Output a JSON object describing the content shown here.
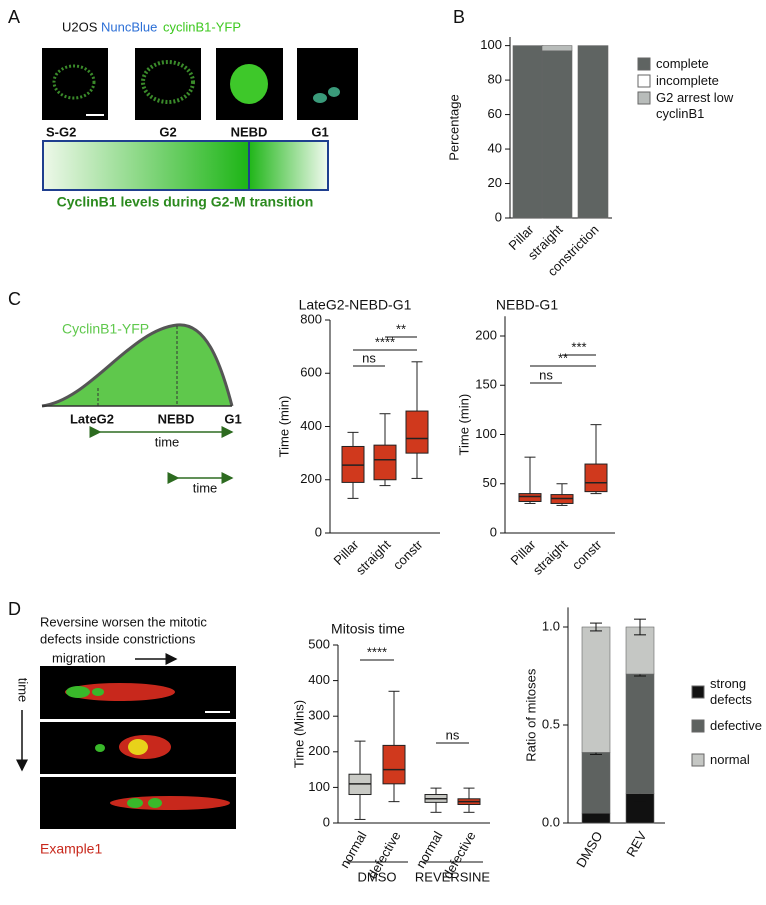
{
  "panel_labels": [
    "A",
    "B",
    "C",
    "D"
  ],
  "panel_a": {
    "stain_labels": [
      "U2OS",
      "NuncBlue",
      "cyclinB1-YFP"
    ],
    "image_labels": [
      "S-G2",
      "G2",
      "NEBD",
      "G1"
    ],
    "caption": "CyclinB1 levels during G2-M transition"
  },
  "panel_c": {
    "curve_label": "CyclinB1-YFP",
    "stage_labels": [
      "LateG2",
      "NEBD",
      "G1"
    ],
    "interval_labels": [
      "time",
      "time"
    ]
  },
  "panel_d": {
    "description": [
      "Reversine worsen the mitotic",
      "defects inside constrictions"
    ],
    "axis_labels": [
      "migration",
      "time"
    ],
    "example_label": "Example1"
  },
  "chart_data": [
    {
      "type": "stacked_bar",
      "ylabel": "Percentage",
      "categories": [
        "Pillar",
        "straight",
        "constriction"
      ],
      "series": [
        {
          "name": "complete",
          "color": "#5f6462",
          "values": [
            100,
            97,
            100
          ]
        },
        {
          "name": "incomplete",
          "color": "#ffffff",
          "values": [
            0,
            0,
            0
          ]
        },
        {
          "name": "G2 arrest low cyclinB1",
          "color": "#b8bcba",
          "values": [
            0,
            3,
            0
          ]
        }
      ],
      "ylim": [
        0,
        105
      ],
      "yticks": [
        0,
        20,
        40,
        60,
        80,
        100
      ]
    },
    {
      "type": "box",
      "title": "LateG2-NEBD-G1",
      "ylabel": "Time (min)",
      "categories": [
        "Pillar",
        "straight",
        "constr"
      ],
      "color": "#d0391d",
      "boxes": [
        {
          "min": 130,
          "q1": 190,
          "median": 255,
          "q3": 325,
          "max": 378
        },
        {
          "min": 178,
          "q1": 200,
          "median": 275,
          "q3": 330,
          "max": 448
        },
        {
          "min": 205,
          "q1": 300,
          "median": 355,
          "q3": 458,
          "max": 643
        }
      ],
      "annotations": [
        "ns",
        "****",
        "**"
      ],
      "ylim": [
        0,
        800
      ],
      "yticks": [
        0,
        200,
        400,
        600,
        800
      ]
    },
    {
      "type": "box",
      "title": "NEBD-G1",
      "ylabel": "Time (min)",
      "categories": [
        "Pillar",
        "straight",
        "constr"
      ],
      "color": "#d0391d",
      "boxes": [
        {
          "min": 30,
          "q1": 32,
          "median": 37,
          "q3": 40,
          "max": 77
        },
        {
          "min": 28,
          "q1": 30,
          "median": 35,
          "q3": 39,
          "max": 50
        },
        {
          "min": 40,
          "q1": 42,
          "median": 51,
          "q3": 70,
          "max": 110
        }
      ],
      "annotations": [
        "ns",
        "**",
        "***"
      ],
      "ylim": [
        0,
        220
      ],
      "yticks": [
        0,
        50,
        100,
        150,
        200
      ]
    },
    {
      "type": "box",
      "title": "Mitosis time",
      "ylabel": "Time (Mins)",
      "categories": [
        "normal",
        "defective",
        "normal",
        "defective"
      ],
      "groups": [
        "DMSO",
        "REVERSINE"
      ],
      "colors": [
        "#c9cac5",
        "#d0391d",
        "#c9cac5",
        "#d0391d"
      ],
      "boxes": [
        {
          "min": 10,
          "q1": 80,
          "median": 110,
          "q3": 137,
          "max": 230
        },
        {
          "min": 60,
          "q1": 110,
          "median": 150,
          "q3": 218,
          "max": 370
        },
        {
          "min": 30,
          "q1": 58,
          "median": 68,
          "q3": 80,
          "max": 98
        },
        {
          "min": 30,
          "q1": 52,
          "median": 60,
          "q3": 68,
          "max": 98
        }
      ],
      "annotations": [
        "****",
        "ns"
      ],
      "ylim": [
        0,
        500
      ],
      "yticks": [
        0,
        100,
        200,
        300,
        400,
        500
      ]
    },
    {
      "type": "stacked_bar",
      "ylabel": "Ratio of mitoses",
      "categories": [
        "DMSO",
        "REV"
      ],
      "series": [
        {
          "name": "strong defects",
          "color": "#111111",
          "values": [
            0.05,
            0.15
          ],
          "errors": [
            0.01,
            0.04
          ]
        },
        {
          "name": "defective",
          "color": "#5e6260",
          "values": [
            0.31,
            0.61
          ],
          "errors": [
            0.01,
            0.01
          ]
        },
        {
          "name": "normal",
          "color": "#c5c7c4",
          "values": [
            0.64,
            0.24
          ],
          "errors": [
            0.02,
            0.04
          ]
        }
      ],
      "ylim": [
        0,
        1.1
      ],
      "yticks": [
        {
          "value": 0,
          "label": "0.0"
        },
        {
          "value": 0.5,
          "label": "0.5"
        },
        {
          "value": 1,
          "label": "1.0"
        }
      ]
    }
  ]
}
